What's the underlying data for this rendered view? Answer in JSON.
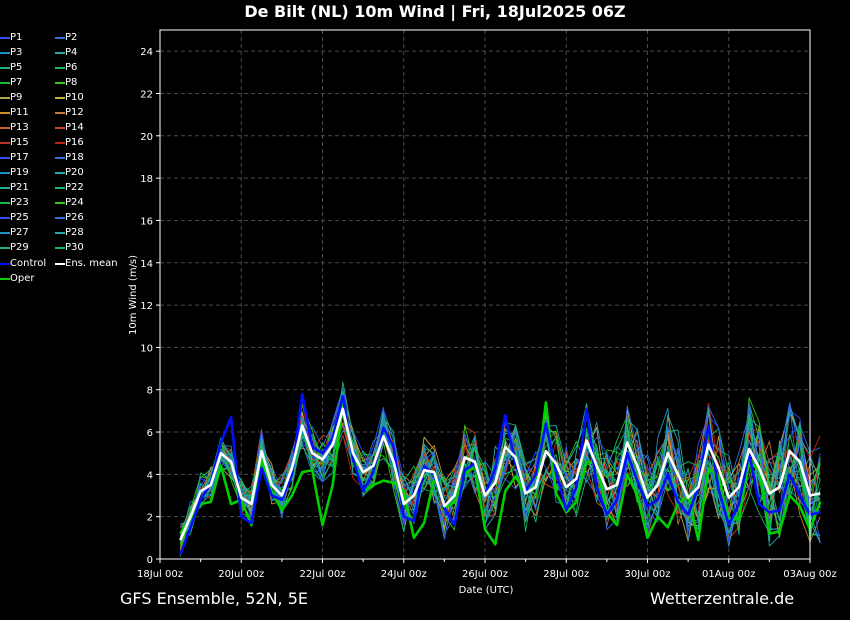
{
  "header": {
    "title": "De Bilt  (NL)  10m Wind | Fri, 18Jul2025 06Z"
  },
  "footer": {
    "left": "GFS Ensemble, 52N, 5E",
    "right": "Wetterzentrale.de"
  },
  "chart_data": {
    "type": "line",
    "ylabel": "10m Wind (m/s)",
    "xlabel": "Date (UTC)",
    "ylim": [
      0,
      25
    ],
    "yticks": [
      0,
      2,
      4,
      6,
      8,
      10,
      12,
      14,
      16,
      18,
      20,
      22,
      24
    ],
    "xlim": [
      0,
      16
    ],
    "xtick_labels": [
      "18Jul 00z",
      "20Jul 00z",
      "22Jul 00z",
      "24Jul 00z",
      "26Jul 00z",
      "28Jul 00z",
      "30Jul 00z",
      "01Aug 00z",
      "03Aug 00z"
    ],
    "xtick_positions": [
      0,
      2,
      4,
      6,
      8,
      10,
      12,
      14,
      16
    ],
    "grid": true,
    "legend_position": "left",
    "x_unit": "days since 18Jul 00z",
    "x_start": 0.5,
    "x_step": 0.25,
    "ens_mean": [
      0.9,
      2.0,
      3.2,
      3.5,
      5.0,
      4.6,
      2.9,
      2.6,
      5.1,
      3.5,
      3.0,
      4.3,
      6.3,
      5.0,
      4.7,
      5.4,
      7.1,
      5.0,
      4.1,
      4.4,
      5.8,
      4.6,
      2.6,
      3.0,
      4.2,
      4.1,
      2.5,
      3.0,
      4.8,
      4.6,
      3.0,
      3.6,
      5.3,
      4.8,
      3.1,
      3.4,
      5.1,
      4.5,
      3.4,
      3.8,
      5.6,
      4.4,
      3.3,
      3.5,
      5.5,
      4.4,
      2.9,
      3.5,
      5.0,
      4.0,
      2.9,
      3.4,
      5.4,
      4.3,
      2.9,
      3.4,
      5.2,
      4.3,
      3.1,
      3.4,
      5.1,
      4.6,
      3.0,
      3.1
    ],
    "control": [
      0.2,
      1.5,
      2.8,
      3.6,
      5.5,
      6.7,
      2.0,
      1.7,
      4.3,
      3.0,
      2.8,
      4.0,
      7.8,
      5.3,
      5.0,
      5.7,
      7.7,
      4.7,
      3.2,
      4.1,
      6.2,
      5.3,
      2.0,
      1.8,
      4.4,
      4.0,
      2.4,
      1.6,
      4.2,
      4.5,
      3.0,
      4.3,
      6.8,
      4.5,
      3.2,
      4.0,
      6.4,
      4.1,
      2.3,
      3.4,
      7.1,
      3.4,
      2.1,
      2.8,
      5.0,
      3.7,
      2.5,
      2.8,
      4.0,
      2.7,
      2.1,
      3.4,
      6.3,
      3.3,
      1.6,
      2.6,
      5.0,
      2.6,
      2.2,
      2.3,
      4.0,
      3.0,
      2.1,
      2.2
    ],
    "oper": [
      1.2,
      1.9,
      2.6,
      2.7,
      4.4,
      2.6,
      2.8,
      1.6,
      4.7,
      3.2,
      2.3,
      3.0,
      4.1,
      4.2,
      1.6,
      3.5,
      7.3,
      4.9,
      3.2,
      3.5,
      3.7,
      3.6,
      3.2,
      1.0,
      1.7,
      3.8,
      2.4,
      2.7,
      4.0,
      4.4,
      1.4,
      0.7,
      3.2,
      3.9,
      3.1,
      3.4,
      7.4,
      3.1,
      2.2,
      2.7,
      4.6,
      4.5,
      2.2,
      1.6,
      4.0,
      3.0,
      1.0,
      2.0,
      1.5,
      2.6,
      3.0,
      0.9,
      4.3,
      3.9,
      1.9,
      1.9,
      4.6,
      4.2,
      1.2,
      1.3,
      3.0,
      2.5,
      1.4,
      2.7
    ],
    "perturbation_count": 30,
    "perturbation_colors": [
      "#3050ff",
      "#2f6fd8",
      "#2090c0",
      "#22a8a8",
      "#20b080",
      "#18b860",
      "#10c030",
      "#30c810",
      "#a8a848",
      "#c8b040",
      "#c89030",
      "#c87830",
      "#c86028",
      "#c84820",
      "#c03020",
      "#c02010",
      "#3050ff",
      "#2f6fd8",
      "#2090c0",
      "#20b0b0",
      "#20b090",
      "#18b870",
      "#10c040",
      "#30c810",
      "#3050ff",
      "#2f6fd8",
      "#2090c0",
      "#22a8a8",
      "#20b080",
      "#18b860"
    ],
    "series_names": [
      "P1",
      "P2",
      "P3",
      "P4",
      "P5",
      "P6",
      "P7",
      "P8",
      "P9",
      "P10",
      "P11",
      "P12",
      "P13",
      "P14",
      "P15",
      "P16",
      "P17",
      "P18",
      "P19",
      "P20",
      "P21",
      "P22",
      "P23",
      "P24",
      "P25",
      "P26",
      "P27",
      "P28",
      "P29",
      "P30",
      "Control",
      "Ens. mean",
      "Oper"
    ],
    "colors": {
      "control": "#0010ff",
      "mean": "#ffffff",
      "oper": "#00d000",
      "grid": "#4a4a4a",
      "frame": "#ffffff"
    }
  }
}
